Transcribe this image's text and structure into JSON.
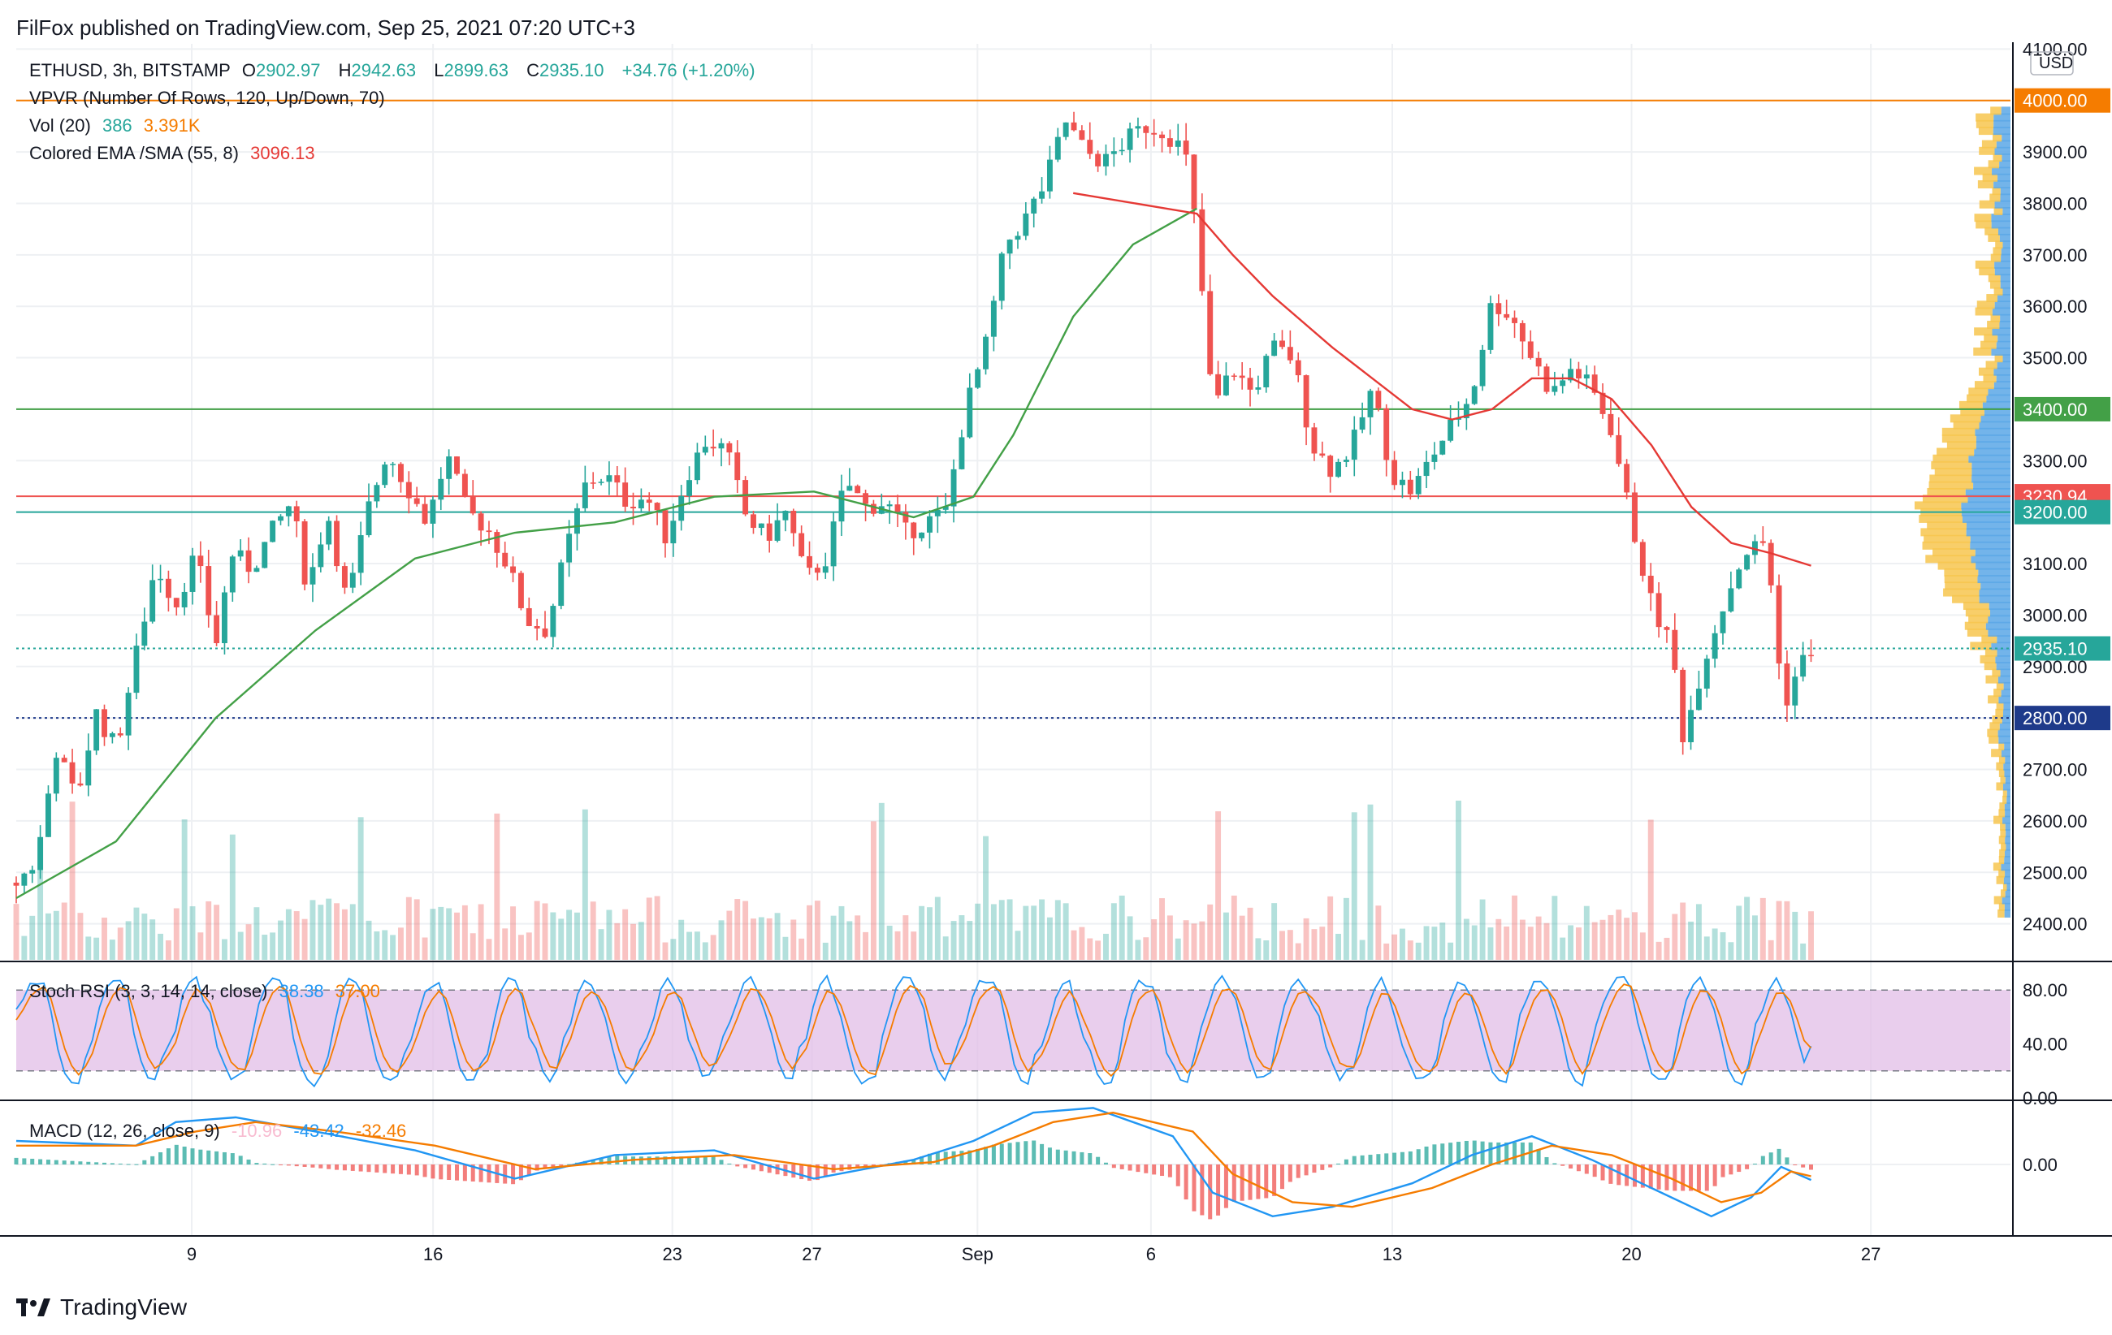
{
  "header": {
    "publisher": "FilFox published on TradingView.com, Sep 25, 2021 07:20 UTC+3"
  },
  "legend": {
    "symbol": "ETHUSD, 3h, BITSTAMP",
    "open_label": "O",
    "open": "2902.97",
    "high_label": "H",
    "high": "2942.63",
    "low_label": "L",
    "low": "2899.63",
    "close_label": "C",
    "close": "2935.10",
    "change": "+34.76 (+1.20%)",
    "vpvr": "VPVR (Number Of Rows, 120, Up/Down, 70)",
    "vol_label": "Vol (20)",
    "vol_value": "386",
    "vol_ma": "3.391K",
    "ema_label": "Colored EMA /SMA (55, 8)",
    "ema_value": "3096.13"
  },
  "stoch_legend": {
    "label": "Stoch RSI (3, 3, 14, 14, close)",
    "k": "38.38",
    "d": "37.00"
  },
  "macd_legend": {
    "label": "MACD (12, 26, close, 9)",
    "hist": "-10.96",
    "macd": "-43.42",
    "signal": "-32.46"
  },
  "footer": {
    "brand": "TradingView"
  },
  "colors": {
    "up": "#26a69a",
    "down": "#ef5350",
    "ema": "#e53935",
    "sma": "#43a047",
    "orange": "#f57c00",
    "blue": "#2196f3"
  },
  "chart_data": [
    {
      "type": "candlestick",
      "currency": "USD",
      "ylim": [
        2330,
        4110
      ],
      "y_ticks": [
        "2400.00",
        "2500.00",
        "2600.00",
        "2700.00",
        "2800.00",
        "2900.00",
        "3000.00",
        "3100.00",
        "3200.00",
        "3300.00",
        "3400.00",
        "3500.00",
        "3600.00",
        "3700.00",
        "3800.00",
        "3900.00",
        "4000.00",
        "4100.00"
      ],
      "x_ticks": [
        {
          "label": "9",
          "t": 0.088
        },
        {
          "label": "16",
          "t": 0.209
        },
        {
          "label": "23",
          "t": 0.329
        },
        {
          "label": "27",
          "t": 0.399
        },
        {
          "label": "Sep",
          "t": 0.482
        },
        {
          "label": "6",
          "t": 0.569
        },
        {
          "label": "13",
          "t": 0.69
        },
        {
          "label": "20",
          "t": 0.81
        },
        {
          "label": "27",
          "t": 0.93
        }
      ],
      "price_path": [
        [
          0.0,
          2480
        ],
        [
          0.01,
          2520
        ],
        [
          0.02,
          2740
        ],
        [
          0.03,
          2640
        ],
        [
          0.04,
          2810
        ],
        [
          0.05,
          2740
        ],
        [
          0.06,
          2920
        ],
        [
          0.07,
          3100
        ],
        [
          0.08,
          3020
        ],
        [
          0.09,
          3120
        ],
        [
          0.1,
          2940
        ],
        [
          0.108,
          3120
        ],
        [
          0.118,
          3090
        ],
        [
          0.128,
          3160
        ],
        [
          0.138,
          3220
        ],
        [
          0.146,
          3050
        ],
        [
          0.156,
          3200
        ],
        [
          0.166,
          3020
        ],
        [
          0.176,
          3200
        ],
        [
          0.186,
          3320
        ],
        [
          0.196,
          3250
        ],
        [
          0.206,
          3180
        ],
        [
          0.216,
          3310
        ],
        [
          0.226,
          3200
        ],
        [
          0.236,
          3170
        ],
        [
          0.246,
          3100
        ],
        [
          0.256,
          2990
        ],
        [
          0.266,
          2970
        ],
        [
          0.276,
          3130
        ],
        [
          0.286,
          3260
        ],
        [
          0.296,
          3270
        ],
        [
          0.306,
          3220
        ],
        [
          0.316,
          3230
        ],
        [
          0.326,
          3150
        ],
        [
          0.336,
          3270
        ],
        [
          0.346,
          3340
        ],
        [
          0.356,
          3320
        ],
        [
          0.366,
          3190
        ],
        [
          0.376,
          3150
        ],
        [
          0.386,
          3200
        ],
        [
          0.396,
          3070
        ],
        [
          0.406,
          3110
        ],
        [
          0.416,
          3260
        ],
        [
          0.426,
          3210
        ],
        [
          0.436,
          3220
        ],
        [
          0.446,
          3160
        ],
        [
          0.456,
          3180
        ],
        [
          0.466,
          3200
        ],
        [
          0.476,
          3400
        ],
        [
          0.486,
          3520
        ],
        [
          0.496,
          3720
        ],
        [
          0.506,
          3770
        ],
        [
          0.516,
          3840
        ],
        [
          0.526,
          3960
        ],
        [
          0.536,
          3900
        ],
        [
          0.546,
          3880
        ],
        [
          0.556,
          3920
        ],
        [
          0.566,
          3950
        ],
        [
          0.576,
          3940
        ],
        [
          0.586,
          3900
        ],
        [
          0.592,
          3740
        ],
        [
          0.6,
          3400
        ],
        [
          0.61,
          3480
        ],
        [
          0.62,
          3430
        ],
        [
          0.63,
          3520
        ],
        [
          0.64,
          3500
        ],
        [
          0.65,
          3330
        ],
        [
          0.66,
          3280
        ],
        [
          0.67,
          3330
        ],
        [
          0.68,
          3440
        ],
        [
          0.69,
          3270
        ],
        [
          0.7,
          3240
        ],
        [
          0.71,
          3310
        ],
        [
          0.72,
          3370
        ],
        [
          0.73,
          3430
        ],
        [
          0.74,
          3610
        ],
        [
          0.75,
          3580
        ],
        [
          0.76,
          3500
        ],
        [
          0.77,
          3430
        ],
        [
          0.78,
          3480
        ],
        [
          0.79,
          3440
        ],
        [
          0.8,
          3360
        ],
        [
          0.81,
          3180
        ],
        [
          0.82,
          3020
        ],
        [
          0.83,
          2940
        ],
        [
          0.836,
          2760
        ],
        [
          0.846,
          2910
        ],
        [
          0.856,
          3020
        ],
        [
          0.866,
          3120
        ],
        [
          0.876,
          3140
        ],
        [
          0.88,
          3060
        ],
        [
          0.886,
          2820
        ],
        [
          0.894,
          2900
        ],
        [
          0.9,
          2935
        ]
      ],
      "ema_path": [
        [
          0.53,
          3820
        ],
        [
          0.592,
          3780
        ],
        [
          0.61,
          3700
        ],
        [
          0.63,
          3620
        ],
        [
          0.66,
          3520
        ],
        [
          0.68,
          3460
        ],
        [
          0.7,
          3400
        ],
        [
          0.72,
          3380
        ],
        [
          0.74,
          3400
        ],
        [
          0.76,
          3460
        ],
        [
          0.78,
          3460
        ],
        [
          0.8,
          3420
        ],
        [
          0.82,
          3330
        ],
        [
          0.84,
          3210
        ],
        [
          0.86,
          3140
        ],
        [
          0.88,
          3120
        ],
        [
          0.9,
          3096
        ]
      ],
      "sma_path": [
        [
          0.0,
          2450
        ],
        [
          0.05,
          2560
        ],
        [
          0.1,
          2800
        ],
        [
          0.15,
          2970
        ],
        [
          0.2,
          3110
        ],
        [
          0.25,
          3160
        ],
        [
          0.3,
          3180
        ],
        [
          0.35,
          3230
        ],
        [
          0.4,
          3240
        ],
        [
          0.45,
          3190
        ],
        [
          0.48,
          3230
        ],
        [
          0.5,
          3350
        ],
        [
          0.53,
          3580
        ],
        [
          0.56,
          3720
        ],
        [
          0.592,
          3790
        ]
      ],
      "horizontal_lines": [
        {
          "price": 4000,
          "color": "#f57c00",
          "label": "4000.00"
        },
        {
          "price": 3400,
          "color": "#43a047",
          "label": "3400.00"
        },
        {
          "price": 3230.94,
          "color": "#ef5350",
          "label": "3230.94"
        },
        {
          "price": 3200,
          "color": "#26a69a",
          "label": "3200.00"
        },
        {
          "price": 2800,
          "color": "#1e3a8a",
          "label": "2800.00",
          "dotted": true
        },
        {
          "price": 2935.1,
          "color": "#26a69a",
          "label": "2935.10",
          "dotted": true
        }
      ]
    },
    {
      "type": "line",
      "name": "Stoch RSI",
      "ylim": [
        0,
        100
      ],
      "y_ticks": [
        "0.00",
        "40.00",
        "80.00"
      ],
      "bands": [
        20,
        80
      ],
      "k_last": 38.38,
      "d_last": 37.0
    },
    {
      "type": "line",
      "name": "MACD",
      "y_ticks": [
        "0.00"
      ],
      "macd_last": -43.42,
      "signal_last": -32.46,
      "hist_last": -10.96,
      "macd_path": [
        [
          0.0,
          0.5
        ],
        [
          0.06,
          0.4
        ],
        [
          0.08,
          0.9
        ],
        [
          0.11,
          1.0
        ],
        [
          0.15,
          0.7
        ],
        [
          0.2,
          0.3
        ],
        [
          0.25,
          -0.3
        ],
        [
          0.3,
          0.2
        ],
        [
          0.35,
          0.3
        ],
        [
          0.4,
          -0.3
        ],
        [
          0.45,
          0.1
        ],
        [
          0.48,
          0.5
        ],
        [
          0.51,
          1.1
        ],
        [
          0.54,
          1.2
        ],
        [
          0.58,
          0.6
        ],
        [
          0.6,
          -0.6
        ],
        [
          0.63,
          -1.1
        ],
        [
          0.66,
          -0.9
        ],
        [
          0.7,
          -0.4
        ],
        [
          0.73,
          0.2
        ],
        [
          0.76,
          0.6
        ],
        [
          0.79,
          0.1
        ],
        [
          0.82,
          -0.5
        ],
        [
          0.85,
          -1.1
        ],
        [
          0.87,
          -0.7
        ],
        [
          0.885,
          -0.05
        ],
        [
          0.9,
          -0.33
        ]
      ],
      "signal_path": [
        [
          0.0,
          0.4
        ],
        [
          0.06,
          0.4
        ],
        [
          0.09,
          0.7
        ],
        [
          0.12,
          0.9
        ],
        [
          0.16,
          0.7
        ],
        [
          0.21,
          0.4
        ],
        [
          0.26,
          -0.1
        ],
        [
          0.31,
          0.1
        ],
        [
          0.36,
          0.2
        ],
        [
          0.41,
          -0.1
        ],
        [
          0.46,
          0.05
        ],
        [
          0.49,
          0.4
        ],
        [
          0.52,
          0.9
        ],
        [
          0.55,
          1.1
        ],
        [
          0.59,
          0.7
        ],
        [
          0.61,
          -0.2
        ],
        [
          0.64,
          -0.8
        ],
        [
          0.67,
          -0.9
        ],
        [
          0.71,
          -0.5
        ],
        [
          0.74,
          0.0
        ],
        [
          0.77,
          0.4
        ],
        [
          0.8,
          0.2
        ],
        [
          0.83,
          -0.3
        ],
        [
          0.855,
          -0.8
        ],
        [
          0.875,
          -0.6
        ],
        [
          0.89,
          -0.15
        ],
        [
          0.9,
          -0.25
        ]
      ]
    }
  ]
}
